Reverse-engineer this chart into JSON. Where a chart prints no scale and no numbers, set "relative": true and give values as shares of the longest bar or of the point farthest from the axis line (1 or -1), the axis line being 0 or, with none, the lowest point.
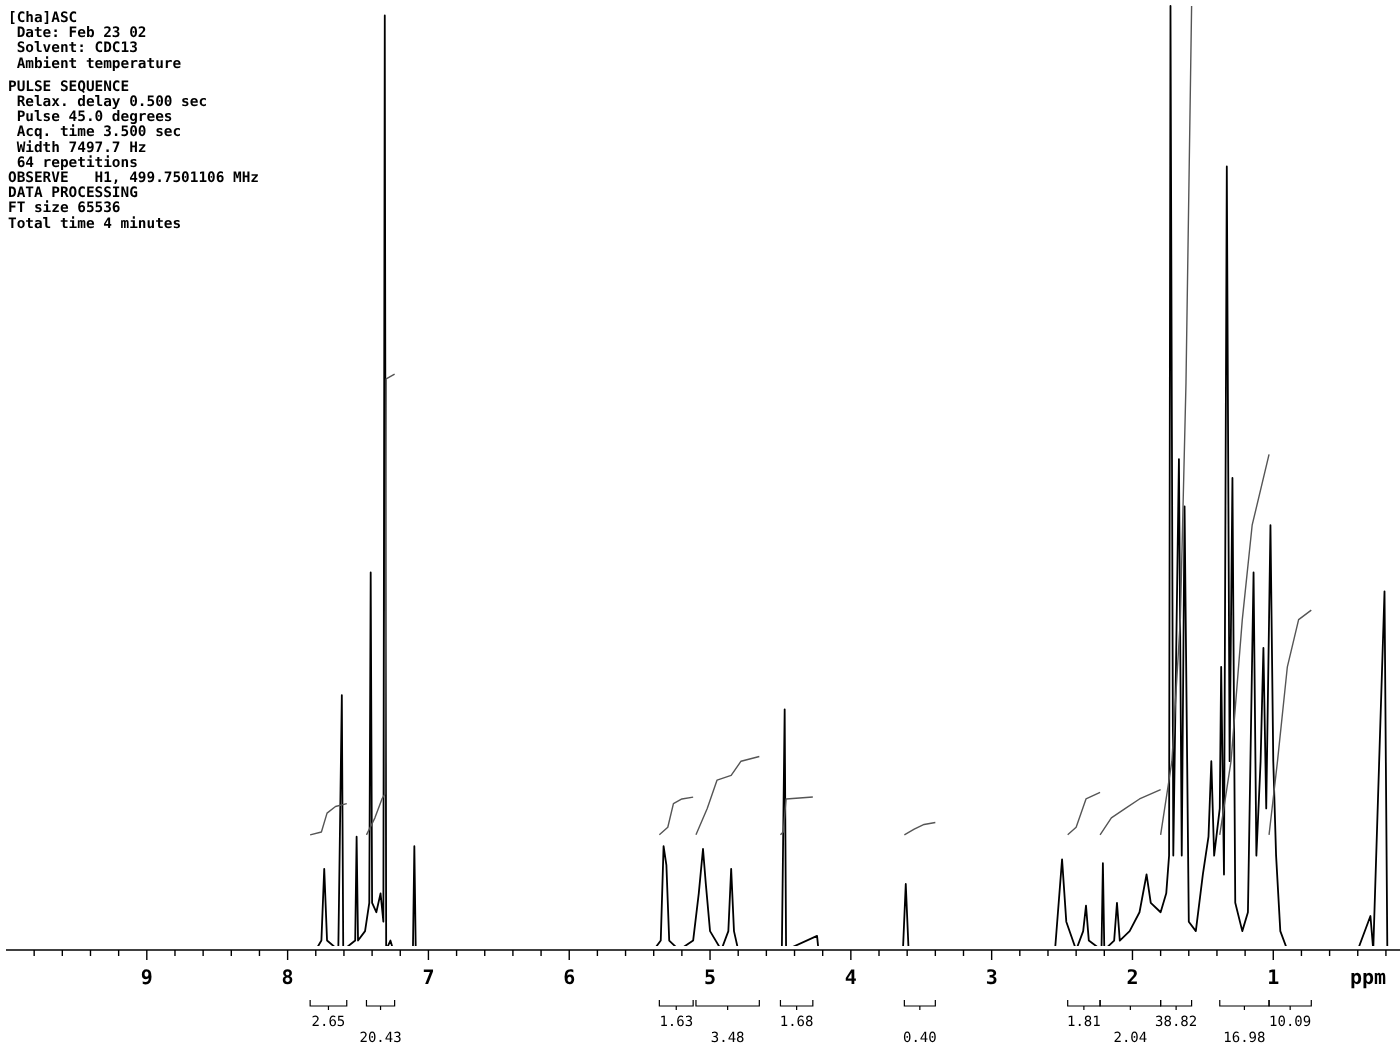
{
  "chart_data": {
    "type": "line",
    "relative": true,
    "xlabel": "ppm",
    "xlim": [
      10,
      0.1
    ],
    "xticks": [
      9,
      8,
      7,
      6,
      5,
      4,
      3,
      2,
      1,
      {
        "value": 9.8,
        "label": null
      },
      {
        "value": 9.6,
        "label": null
      },
      {
        "value": 9.4,
        "label": null
      },
      {
        "value": 9.2,
        "label": null
      },
      {
        "value": 8.8,
        "label": null
      },
      {
        "value": 8.6,
        "label": null
      },
      {
        "value": 8.4,
        "label": null
      },
      {
        "value": 8.2,
        "label": null
      },
      {
        "value": 7.8,
        "label": null
      },
      {
        "value": 7.6,
        "label": null
      },
      {
        "value": 7.4,
        "label": null
      },
      {
        "value": 7.2,
        "label": null
      },
      {
        "value": 6.8,
        "label": null
      },
      {
        "value": 6.6,
        "label": null
      },
      {
        "value": 6.4,
        "label": null
      },
      {
        "value": 6.2,
        "label": null
      },
      {
        "value": 5.8,
        "label": null
      },
      {
        "value": 5.6,
        "label": null
      },
      {
        "value": 5.4,
        "label": null
      },
      {
        "value": 5.2,
        "label": null
      },
      {
        "value": 4.8,
        "label": null
      },
      {
        "value": 4.6,
        "label": null
      },
      {
        "value": 4.4,
        "label": null
      },
      {
        "value": 4.2,
        "label": null
      },
      {
        "value": 3.8,
        "label": null
      },
      {
        "value": 3.6,
        "label": null
      },
      {
        "value": 3.4,
        "label": null
      },
      {
        "value": 3.2,
        "label": null
      },
      {
        "value": 2.8,
        "label": null
      },
      {
        "value": 2.6,
        "label": null
      },
      {
        "value": 2.4,
        "label": null
      },
      {
        "value": 2.2,
        "label": null
      },
      {
        "value": 1.8,
        "label": null
      },
      {
        "value": 1.6,
        "label": null
      },
      {
        "value": 1.4,
        "label": null
      },
      {
        "value": 1.2,
        "label": null
      },
      {
        "value": 0.8,
        "label": null
      },
      {
        "value": 0.6,
        "label": null
      },
      {
        "value": 0.4,
        "label": null
      },
      {
        "value": 0.2,
        "label": null
      }
    ],
    "grid": false,
    "marker": "none",
    "line_style": "solid",
    "series": [
      {
        "color": "#000000",
        "x": [
          10,
          8.1,
          7.8,
          7.76,
          7.74,
          7.72,
          7.64,
          7.615,
          7.605,
          7.52,
          7.51,
          7.5,
          7.45,
          7.42,
          7.41,
          7.4,
          7.37,
          7.34,
          7.32,
          7.31,
          7.3,
          7.27,
          7.25,
          7.11,
          7.1,
          7.09,
          5.4,
          5.35,
          5.33,
          5.31,
          5.29,
          5.22,
          5.12,
          5.08,
          5.05,
          5.03,
          5,
          4.92,
          4.87,
          4.85,
          4.83,
          4.8,
          4.49,
          4.47,
          4.46,
          4.24,
          4.23,
          3.63,
          3.61,
          3.59,
          2.55,
          2.5,
          2.47,
          2.4,
          2.35,
          2.33,
          2.31,
          2.22,
          2.21,
          2.2,
          2.13,
          2.11,
          2.09,
          2.02,
          1.95,
          1.9,
          1.87,
          1.8,
          1.76,
          1.74,
          1.73,
          1.71,
          1.67,
          1.65,
          1.63,
          1.6,
          1.55,
          1.5,
          1.46,
          1.44,
          1.42,
          1.38,
          1.37,
          1.35,
          1.33,
          1.31,
          1.29,
          1.27,
          1.22,
          1.18,
          1.14,
          1.12,
          1.09,
          1.07,
          1.05,
          1.02,
          1,
          0.98,
          0.95,
          0.9,
          0.4,
          0.31,
          0.29,
          0.21,
          0.19,
          0.1
        ],
        "values": [
          0,
          0,
          0,
          0.01,
          0.086,
          0.01,
          0,
          0.27,
          0,
          0.01,
          0.12,
          0.01,
          0.02,
          0.05,
          0.4,
          0.05,
          0.04,
          0.06,
          0.03,
          0.99,
          0,
          0.01,
          0,
          0,
          0.11,
          0,
          0,
          0.01,
          0.11,
          0.09,
          0.01,
          0,
          0.01,
          0.06,
          0.107,
          0.07,
          0.02,
          0,
          0.02,
          0.086,
          0.02,
          0,
          0,
          0.255,
          0,
          0.015,
          0,
          0,
          0.07,
          0,
          0,
          0.096,
          0.03,
          0,
          0.02,
          0.047,
          0.01,
          0,
          0.092,
          0,
          0.01,
          0.05,
          0.01,
          0.02,
          0.04,
          0.08,
          0.05,
          0.04,
          0.06,
          0.1,
          1,
          0.1,
          0.52,
          0.1,
          0.47,
          0.03,
          0.02,
          0.08,
          0.12,
          0.2,
          0.1,
          0.15,
          0.3,
          0.08,
          0.83,
          0.2,
          0.5,
          0.05,
          0.02,
          0.04,
          0.4,
          0.1,
          0.2,
          0.32,
          0.15,
          0.45,
          0.2,
          0.1,
          0.02,
          0,
          0,
          0.036,
          0,
          0.38,
          0,
          0
        ]
      },
      {
        "color": "#555555",
        "x": [
          7.84,
          7.76,
          7.72,
          7.66,
          7.58
        ],
        "values": [
          0.122,
          0.125,
          0.145,
          0.152,
          0.155
        ]
      },
      {
        "color": "#555555",
        "x": [
          7.44,
          7.38,
          7.33,
          7.31,
          7.3,
          7.24
        ],
        "values": [
          0.122,
          0.14,
          0.16,
          0.165,
          0.605,
          0.61
        ]
      },
      {
        "color": "#555555",
        "x": [
          5.36,
          5.3,
          5.26,
          5.2,
          5.12
        ],
        "values": [
          0.122,
          0.13,
          0.155,
          0.16,
          0.162
        ]
      },
      {
        "color": "#555555",
        "x": [
          5.1,
          5.02,
          4.95,
          4.85,
          4.78,
          4.65
        ],
        "values": [
          0.122,
          0.15,
          0.18,
          0.185,
          0.2,
          0.205
        ]
      },
      {
        "color": "#555555",
        "x": [
          4.5,
          4.48,
          4.46,
          4.27
        ],
        "values": [
          0.122,
          0.125,
          0.16,
          0.162
        ]
      },
      {
        "color": "#555555",
        "x": [
          3.62,
          3.55,
          3.48,
          3.4
        ],
        "values": [
          0.122,
          0.128,
          0.133,
          0.135
        ]
      },
      {
        "color": "#555555",
        "x": [
          2.46,
          2.4,
          2.33,
          2.23
        ],
        "values": [
          0.122,
          0.13,
          0.16,
          0.167
        ]
      },
      {
        "color": "#555555",
        "x": [
          2.23,
          2.15,
          2.05,
          1.95,
          1.8
        ],
        "values": [
          0.122,
          0.14,
          0.15,
          0.16,
          0.17
        ]
      },
      {
        "color": "#555555",
        "x": [
          1.8,
          1.72,
          1.66,
          1.62,
          1.58
        ],
        "values": [
          0.122,
          0.2,
          0.35,
          0.6,
          1
        ]
      },
      {
        "color": "#555555",
        "x": [
          1.38,
          1.3,
          1.22,
          1.15,
          1.03
        ],
        "values": [
          0.122,
          0.2,
          0.35,
          0.45,
          0.525
        ]
      },
      {
        "color": "#555555",
        "x": [
          1.03,
          0.97,
          0.9,
          0.82,
          0.73
        ],
        "values": [
          0.122,
          0.2,
          0.3,
          0.35,
          0.36
        ]
      }
    ],
    "annotations": [
      "[Cha]ASC",
      " Date: Feb 23 02",
      " Solvent: CDC13",
      " Ambient temperature",
      "PULSE SEQUENCE",
      " Relax. delay 0.500 sec",
      " Pulse 45.0 degrees",
      " Acq. time 3.500 sec",
      " Width 7497.7 Hz",
      " 64 repetitions",
      "OBSERVE   H1, 499.7501106 MHz",
      "DATA PROCESSING",
      "FT size 65536",
      "Total time 4 minutes",
      "2.65",
      "20.43",
      "1.63",
      "3.48",
      "1.68",
      "0.40",
      "1.81",
      "2.04",
      "38.82",
      "16.98",
      "10.09"
    ]
  }
}
